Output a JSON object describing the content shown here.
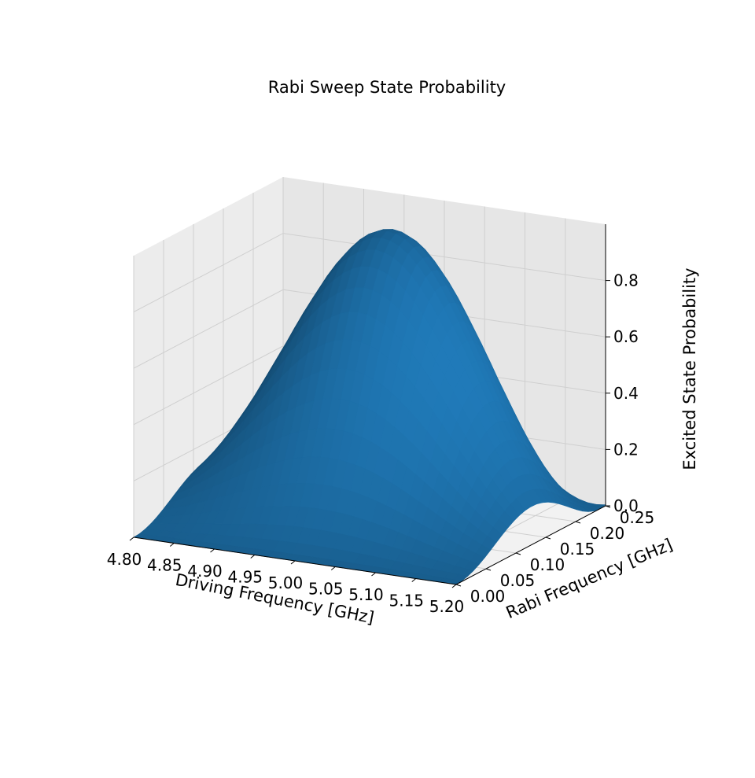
{
  "chart_data": {
    "type": "surface",
    "title": "Rabi Sweep State Probability",
    "xlabel": "Driving Frequency [GHz]",
    "ylabel": "Rabi Frequency [GHz]",
    "zlabel": "Excited State Probability",
    "xlim": [
      4.8,
      5.2
    ],
    "ylim": [
      0.0,
      0.25
    ],
    "zlim": [
      0.0,
      1.0
    ],
    "x_ticks": [
      "4.80",
      "4.85",
      "4.90",
      "4.95",
      "5.00",
      "5.05",
      "5.10",
      "5.15",
      "5.20"
    ],
    "y_ticks": [
      "0.00",
      "0.05",
      "0.10",
      "0.15",
      "0.20",
      "0.25"
    ],
    "z_ticks": [
      "0.0",
      "0.2",
      "0.4",
      "0.6",
      "0.8"
    ],
    "resonance_frequency": 5.0,
    "surface_color": "#1f77b4",
    "grid": true,
    "pane_color": "#f2f2f2"
  }
}
